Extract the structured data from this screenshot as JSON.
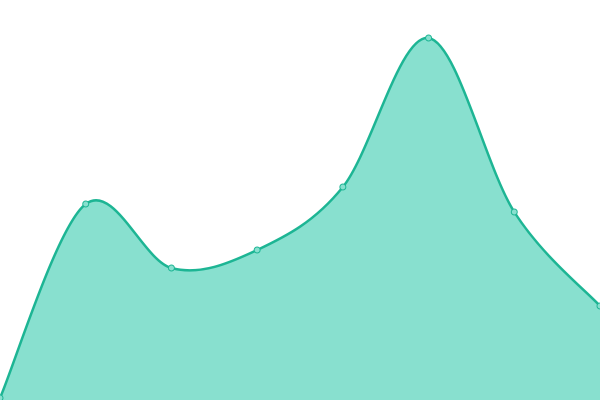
{
  "chart_data": {
    "type": "area",
    "categories": [
      null,
      null,
      null,
      null,
      null,
      null,
      null,
      null
    ],
    "values": [
      2,
      196,
      132,
      150,
      213,
      362,
      188,
      94
    ],
    "ylim": [
      0,
      400
    ],
    "fill": "#88e0cf",
    "color": "#1db594",
    "smooth": true,
    "markers": true
  }
}
